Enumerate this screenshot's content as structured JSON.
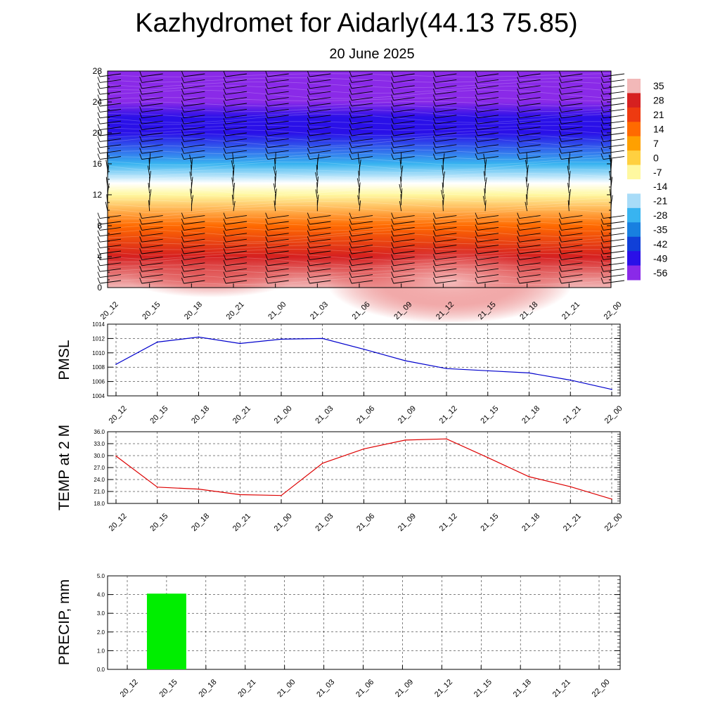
{
  "title": "Kazhydromet for Aidarly(44.13 75.85)",
  "subtitle": "20 June 2025",
  "x_labels": [
    "20_12",
    "20_15",
    "20_18",
    "20_21",
    "21_00",
    "21_03",
    "21_06",
    "21_09",
    "21_12",
    "21_15",
    "21_18",
    "21_21",
    "22_00"
  ],
  "colors": {
    "pmsl_line": "#0000cc",
    "temp_line": "#dd0000",
    "precip_bar": "#00ee00",
    "wind_barb": "#000000"
  },
  "chart_data": [
    {
      "type": "heatmap",
      "name": "upper-air temperature cross-section with wind barbs",
      "y_ticks": [
        0,
        4,
        8,
        12,
        16,
        20,
        24,
        28
      ],
      "ylim": [
        0,
        28
      ],
      "colorbar_levels": [
        35,
        28,
        21,
        14,
        7,
        0,
        -7,
        -14,
        -21,
        -28,
        -35,
        -42,
        -49,
        -56
      ],
      "colorbar_colors": [
        "#f2b8b8",
        "#d62020",
        "#ee3a10",
        "#ff6a00",
        "#ffa000",
        "#ffd040",
        "#fff8a0",
        "#ffffff",
        "#a8dcf8",
        "#38b4f0",
        "#1880e0",
        "#1040d8",
        "#2a10e8",
        "#8a2ae8"
      ],
      "temperature_profile": [
        {
          "height": 0,
          "value": 30
        },
        {
          "height": 4,
          "value": 24
        },
        {
          "height": 8,
          "value": 12
        },
        {
          "height": 12,
          "value": -10
        },
        {
          "height": 13.5,
          "value": -16
        },
        {
          "height": 16,
          "value": -30
        },
        {
          "height": 20,
          "value": -52
        },
        {
          "height": 22,
          "value": -55
        },
        {
          "height": 24,
          "value": -60
        },
        {
          "height": 28,
          "value": -62
        }
      ]
    },
    {
      "type": "line",
      "ylabel": "PMSL",
      "y_ticks": [
        "1004",
        "1006",
        "1008",
        "1010",
        "1012",
        "1014"
      ],
      "ylim": [
        1004,
        1014
      ],
      "categories": [
        "20_12",
        "20_15",
        "20_18",
        "20_21",
        "21_00",
        "21_03",
        "21_06",
        "21_09",
        "21_12",
        "21_15",
        "21_18",
        "21_21",
        "22_00"
      ],
      "values": [
        1008.4,
        1011.5,
        1012.2,
        1011.3,
        1011.9,
        1012.0,
        1010.5,
        1008.9,
        1007.8,
        1007.5,
        1007.2,
        1006.2,
        1004.9
      ]
    },
    {
      "type": "line",
      "ylabel": "TEMP at 2 M",
      "y_ticks": [
        "18.0",
        "21.0",
        "24.0",
        "27.0",
        "30.0",
        "33.0",
        "36.0"
      ],
      "ylim": [
        18,
        36
      ],
      "categories": [
        "20_12",
        "20_15",
        "20_18",
        "20_21",
        "21_00",
        "21_03",
        "21_06",
        "21_09",
        "21_12",
        "21_15",
        "21_18",
        "21_21",
        "22_00"
      ],
      "values": [
        29.9,
        22.1,
        21.6,
        20.2,
        20.0,
        28.1,
        31.7,
        33.9,
        34.2,
        29.5,
        24.7,
        22.2,
        19.1
      ]
    },
    {
      "type": "bar",
      "ylabel": "PRECIP, mm",
      "y_ticks": [
        "0.0",
        "1.0",
        "2.0",
        "3.0",
        "4.0",
        "5.0"
      ],
      "ylim": [
        0,
        5
      ],
      "categories": [
        "20_12",
        "20_15",
        "20_18",
        "20_21",
        "21_00",
        "21_03",
        "21_06",
        "21_09",
        "21_12",
        "21_15",
        "21_18",
        "21_21",
        "22_00"
      ],
      "values": [
        0,
        4.05,
        0,
        0,
        0,
        0,
        0,
        0,
        0,
        0,
        0,
        0,
        0
      ]
    }
  ]
}
